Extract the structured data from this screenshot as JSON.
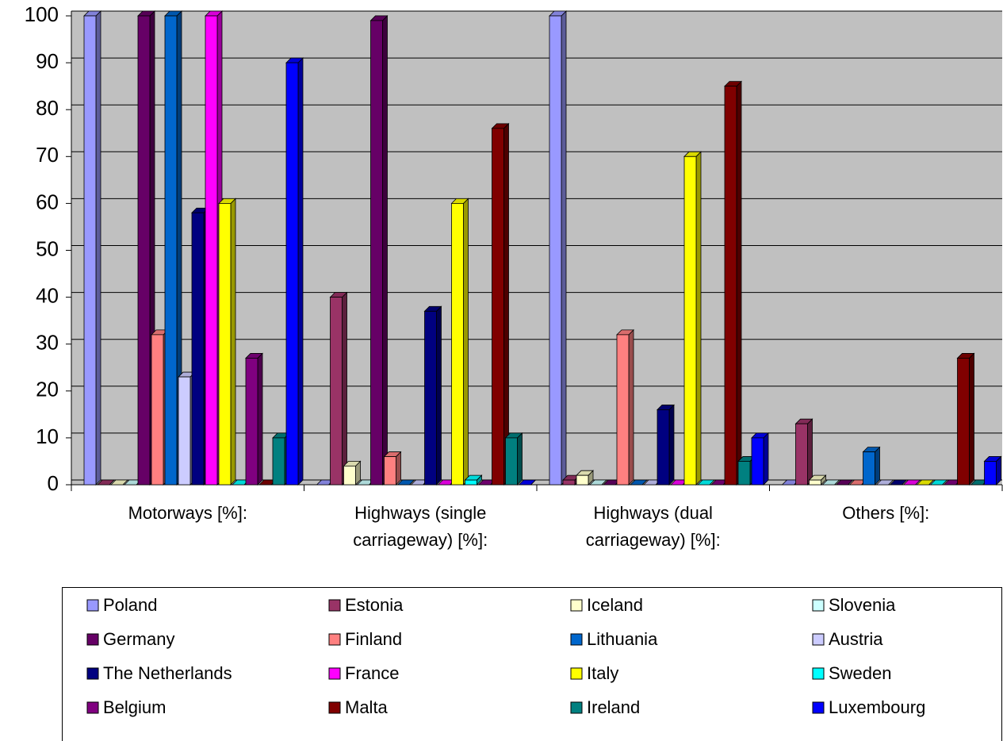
{
  "chart_data": {
    "type": "bar",
    "categories": [
      "Motorways [%]:",
      "Highways (single carriageway) [%]:",
      "Highways (dual carriageway) [%]:",
      "Others [%]:"
    ],
    "series": [
      {
        "name": "Poland",
        "color": "#9999ff",
        "values": [
          100,
          0,
          100,
          0
        ]
      },
      {
        "name": "Estonia",
        "color": "#993366",
        "values": [
          0,
          40,
          1,
          13
        ]
      },
      {
        "name": "Iceland",
        "color": "#ffffcc",
        "values": [
          0,
          4,
          2,
          1
        ]
      },
      {
        "name": "Slovenia",
        "color": "#ccffff",
        "values": [
          0,
          0,
          0,
          0
        ]
      },
      {
        "name": "Germany",
        "color": "#660066",
        "values": [
          100,
          99,
          0,
          0
        ]
      },
      {
        "name": "Finland",
        "color": "#ff8080",
        "values": [
          32,
          6,
          32,
          0
        ]
      },
      {
        "name": "Lithuania",
        "color": "#0066cc",
        "values": [
          100,
          0,
          0,
          7
        ]
      },
      {
        "name": "Austria",
        "color": "#ccccff",
        "values": [
          23,
          0,
          0,
          0
        ]
      },
      {
        "name": "The Netherlands",
        "color": "#000080",
        "values": [
          58,
          37,
          16,
          0
        ]
      },
      {
        "name": "France",
        "color": "#ff00ff",
        "values": [
          100,
          0,
          0,
          0
        ]
      },
      {
        "name": "Italy",
        "color": "#ffff00",
        "values": [
          60,
          60,
          70,
          0
        ]
      },
      {
        "name": "Sweden",
        "color": "#00ffff",
        "values": [
          0,
          1,
          0,
          0
        ]
      },
      {
        "name": "Belgium",
        "color": "#800080",
        "values": [
          27,
          0,
          0,
          0
        ]
      },
      {
        "name": "Malta",
        "color": "#800000",
        "values": [
          0,
          76,
          85,
          27
        ]
      },
      {
        "name": "Ireland",
        "color": "#008080",
        "values": [
          10,
          10,
          5,
          0
        ]
      },
      {
        "name": "Luxembourg",
        "color": "#0000ff",
        "values": [
          90,
          0,
          10,
          5
        ]
      }
    ],
    "ylim": [
      0,
      100
    ],
    "yticks": [
      0,
      10,
      20,
      30,
      40,
      50,
      60,
      70,
      80,
      90,
      100
    ],
    "grid": true,
    "legend": "bottom"
  }
}
